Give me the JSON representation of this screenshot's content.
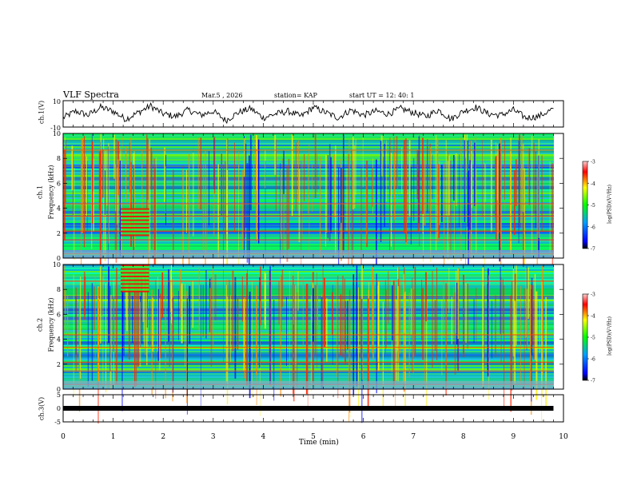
{
  "header": {
    "title": "VLF Spectra",
    "date": "Mar.5  , 2026",
    "station": "station= KAP",
    "start": "start  UT  =   12: 40: 1"
  },
  "colors": {
    "spectro_low": "#0000ff",
    "spectro_mid": "#00ff00",
    "spectro_high": "#ff0000",
    "trace": "#000000"
  },
  "chart_data": [
    {
      "type": "line",
      "name": "ch1-waveform",
      "ylabel": "ch.1(V)",
      "ylim": [
        -10,
        10
      ],
      "yticks": [
        "10",
        "-10"
      ],
      "x": [
        0.0,
        0.25,
        0.5,
        0.75,
        1.0,
        1.25,
        1.5,
        1.75,
        2.0,
        2.25,
        2.5,
        2.75,
        3.0,
        3.25,
        3.5,
        3.75,
        4.0,
        4.25,
        4.5,
        4.75,
        5.0,
        5.25,
        5.5,
        5.75,
        6.0,
        6.25,
        6.5,
        6.75,
        7.0,
        7.25,
        7.5,
        7.75,
        8.0,
        8.25,
        8.5,
        8.75,
        9.0,
        9.25,
        9.5,
        9.8
      ],
      "values": [
        -3,
        2,
        -1,
        5,
        2,
        -4,
        1,
        6,
        0,
        -2,
        3,
        -1,
        2,
        -5,
        1,
        4,
        -3,
        0,
        2,
        -2,
        5,
        1,
        -3,
        3,
        -1,
        2,
        0,
        4,
        1,
        -2,
        3,
        -4,
        2,
        5,
        0,
        -1,
        3,
        -3,
        -2,
        4
      ]
    },
    {
      "type": "heatmap",
      "name": "ch1-spectrogram",
      "ylabel_line1": "ch.1",
      "ylabel_line2": "Frequency (kHz)",
      "ylim": [
        0,
        10
      ],
      "yticks": [
        "0",
        "2",
        "4",
        "6",
        "8",
        "10"
      ],
      "colorbar_label": "log(PSD)(V²/Hz)",
      "colorbar_range": [
        -7,
        -3
      ],
      "colorbar_ticks": [
        "-3",
        "-4",
        "-5",
        "-6",
        "-7"
      ]
    },
    {
      "type": "heatmap",
      "name": "ch2-spectrogram",
      "ylabel_line1": "ch.2",
      "ylabel_line2": "Frequency (kHz)",
      "ylim": [
        0,
        10
      ],
      "yticks": [
        "0",
        "2",
        "4",
        "6",
        "8",
        "10"
      ],
      "colorbar_label": "log(PSD)(V²/Hz)",
      "colorbar_range": [
        -7,
        -3
      ],
      "colorbar_ticks": [
        "-3",
        "-4",
        "-5",
        "-6",
        "-7"
      ]
    },
    {
      "type": "line",
      "name": "ch3-waveform",
      "ylabel": "ch.3(V)",
      "ylim": [
        -5,
        5
      ],
      "yticks": [
        "5",
        "0",
        "-5"
      ],
      "x": [
        0.0,
        9.8
      ],
      "values": [
        0,
        0
      ]
    }
  ],
  "xaxis": {
    "label": "Time  (min)",
    "range": [
      0,
      10
    ],
    "ticks": [
      "0",
      "1",
      "2",
      "3",
      "4",
      "5",
      "6",
      "7",
      "8",
      "9",
      "10"
    ]
  }
}
